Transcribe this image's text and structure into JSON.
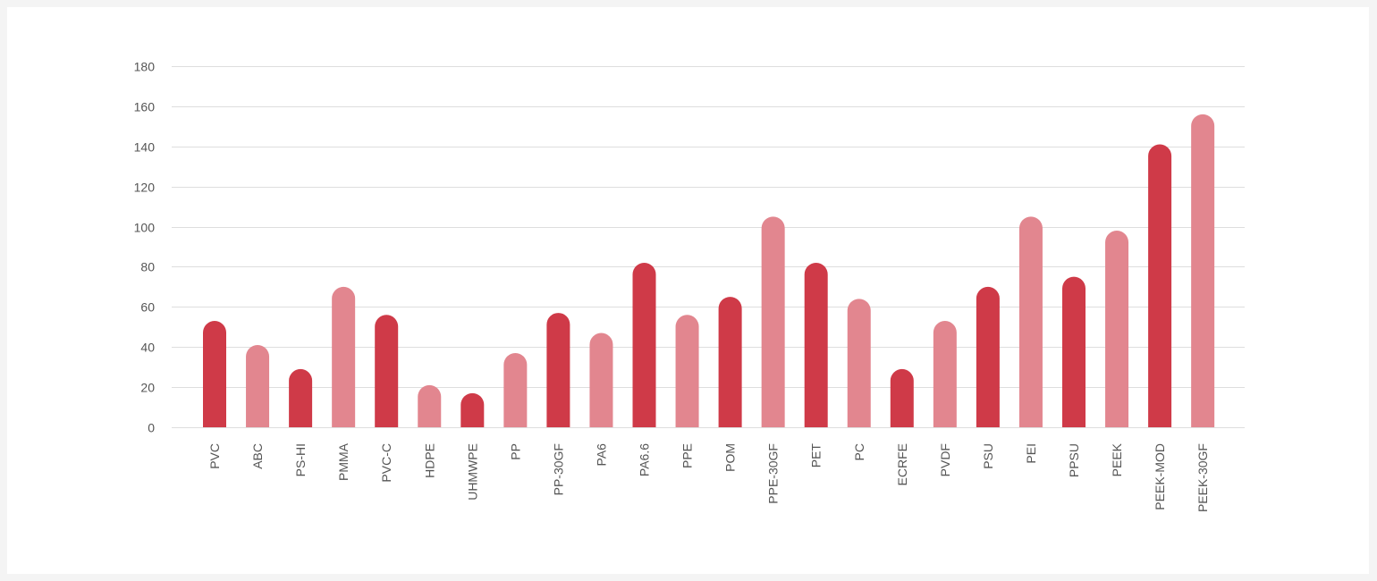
{
  "chart_data": {
    "type": "bar",
    "title": "",
    "xlabel": "",
    "ylabel": "",
    "ylim": [
      0,
      180
    ],
    "yticks": [
      0,
      20,
      40,
      60,
      80,
      100,
      120,
      140,
      160,
      180
    ],
    "grid": true,
    "legend": "none",
    "colors": {
      "dark": "#cf3a48",
      "light": "#e2868f"
    },
    "categories": [
      "PVC",
      "ABC",
      "PS-HI",
      "PMMA",
      "PVC-C",
      "HDPE",
      "UHMWPE",
      "PP",
      "PP-30GF",
      "PA6",
      "PA6.6",
      "PPE",
      "POM",
      "PPE-30GF",
      "PET",
      "PC",
      "ECRFE",
      "PVDF",
      "PSU",
      "PEI",
      "PPSU",
      "PEEK",
      "PEEK-MOD",
      "PEEK-30GF"
    ],
    "values": [
      53,
      41,
      29,
      70,
      56,
      21,
      17,
      37,
      57,
      47,
      82,
      56,
      65,
      105,
      82,
      64,
      29,
      53,
      70,
      105,
      75,
      98,
      141,
      156
    ],
    "bar_shades": [
      "dark",
      "light",
      "dark",
      "light",
      "dark",
      "light",
      "dark",
      "light",
      "dark",
      "light",
      "dark",
      "light",
      "dark",
      "light",
      "dark",
      "light",
      "dark",
      "light",
      "dark",
      "light",
      "dark",
      "light",
      "dark",
      "light"
    ]
  }
}
